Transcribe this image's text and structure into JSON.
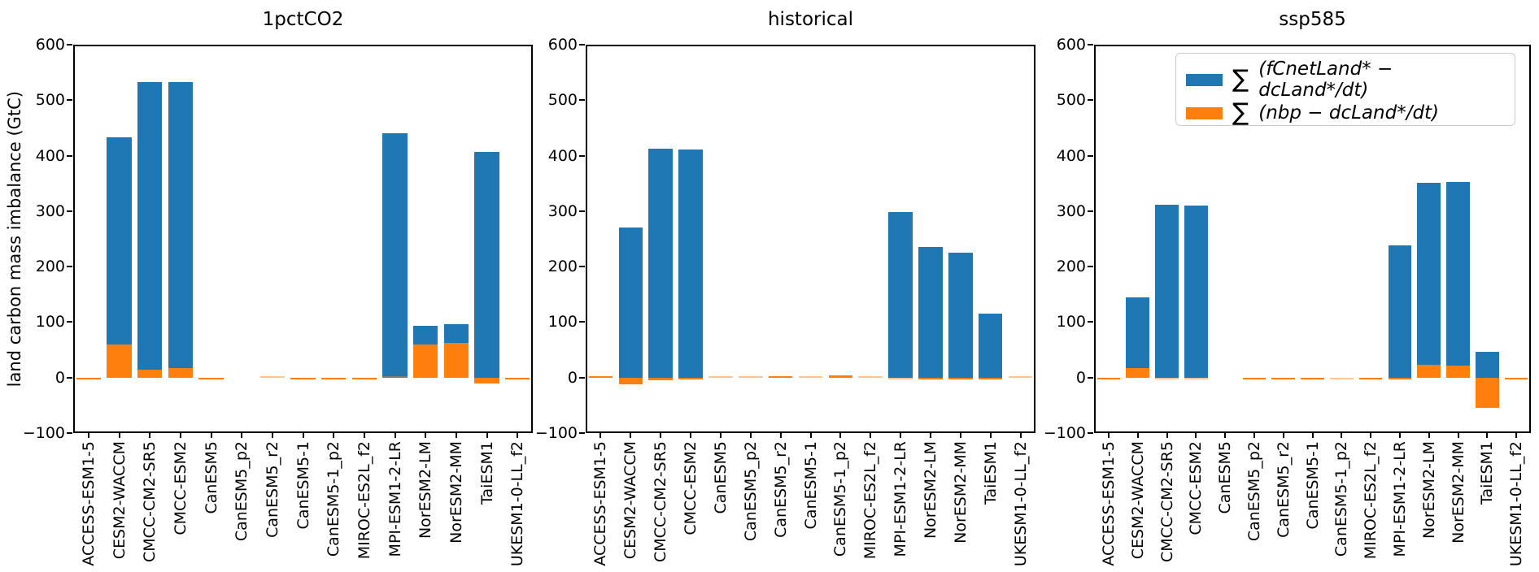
{
  "figure": {
    "y_axis_label": "land carbon mass imbalance (GtC)",
    "background": "#ffffff",
    "colors": {
      "blue": "#1f77b4",
      "orange": "#ff7f0e",
      "spine": "#000000"
    },
    "y_ticks": [
      "−100",
      "0",
      "100",
      "200",
      "300",
      "400",
      "500",
      "600"
    ]
  },
  "legend": {
    "location": "upper right of ssp585 panel",
    "entries": [
      {
        "swatch_color": "#1f77b4",
        "sum_symbol": "∑",
        "formula": "(fCnetLand* − dcLand*/dt)"
      },
      {
        "swatch_color": "#ff7f0e",
        "sum_symbol": "∑",
        "formula": "(nbp − dcLand*/dt)"
      }
    ]
  },
  "chart_data": [
    {
      "type": "bar",
      "title": "1pctCO2",
      "ylabel": "land carbon mass imbalance (GtC)",
      "ylim": [
        -100,
        600
      ],
      "grid": false,
      "bar_width": 0.8,
      "categories": [
        "ACCESS-ESM1-5",
        "CESM2-WACCM",
        "CMCC-CM2-SR5",
        "CMCC-ESM2",
        "CanESM5",
        "CanESM5_p2",
        "CanESM5_r2",
        "CanESM5-1",
        "CanESM5-1_p2",
        "MIROC-ES2L_f2",
        "MPI-ESM1-2-LR",
        "NorESM2-LM",
        "NorESM2-MM",
        "TaiESM1",
        "UKESM1-0-LL_f2"
      ],
      "series": [
        {
          "key": "blue",
          "name": "∑(fCnetLand* − dcLand*/dt)",
          "color": "#1f77b4",
          "values": [
            0,
            433,
            533,
            533,
            0,
            0,
            0,
            0,
            0,
            0,
            441,
            93,
            96,
            407,
            0
          ]
        },
        {
          "key": "orange",
          "name": "∑(nbp − dcLand*/dt)",
          "color": "#ff7f0e",
          "values": [
            -2,
            60,
            14,
            17,
            -2,
            0,
            1,
            -3,
            -3,
            -3,
            1,
            59,
            62,
            -11,
            -2
          ]
        }
      ]
    },
    {
      "type": "bar",
      "title": "historical",
      "ylabel": "land carbon mass imbalance (GtC)",
      "ylim": [
        -100,
        600
      ],
      "grid": false,
      "bar_width": 0.8,
      "categories": [
        "ACCESS-ESM1-5",
        "CESM2-WACCM",
        "CMCC-CM2-SR5",
        "CMCC-ESM2",
        "CanESM5",
        "CanESM5_p2",
        "CanESM5_r2",
        "CanESM5-1",
        "CanESM5-1_p2",
        "MIROC-ES2L_f2",
        "MPI-ESM1-2-LR",
        "NorESM2-LM",
        "NorESM2-MM",
        "TaiESM1",
        "UKESM1-0-LL_f2"
      ],
      "series": [
        {
          "key": "blue",
          "name": "∑(fCnetLand* − dcLand*/dt)",
          "color": "#1f77b4",
          "values": [
            0,
            271,
            413,
            411,
            0,
            0,
            0,
            0,
            0,
            0,
            298,
            235,
            225,
            115,
            0
          ]
        },
        {
          "key": "orange",
          "name": "∑(nbp − dcLand*/dt)",
          "color": "#ff7f0e",
          "values": [
            2,
            -12,
            -5,
            -3,
            1,
            1,
            3,
            1,
            4,
            1,
            -1,
            -2,
            -4,
            -3,
            1
          ]
        }
      ]
    },
    {
      "type": "bar",
      "title": "ssp585",
      "ylabel": "land carbon mass imbalance (GtC)",
      "ylim": [
        -100,
        600
      ],
      "grid": false,
      "bar_width": 0.8,
      "categories": [
        "ACCESS-ESM1-5",
        "CESM2-WACCM",
        "CMCC-CM2-SR5",
        "CMCC-ESM2",
        "CanESM5",
        "CanESM5_p2",
        "CanESM5_r2",
        "CanESM5-1",
        "CanESM5-1_p2",
        "MIROC-ES2L_f2",
        "MPI-ESM1-2-LR",
        "NorESM2-LM",
        "NorESM2-MM",
        "TaiESM1",
        "UKESM1-0-LL_f2"
      ],
      "series": [
        {
          "key": "blue",
          "name": "∑(fCnetLand* − dcLand*/dt)",
          "color": "#1f77b4",
          "values": [
            0,
            144,
            312,
            310,
            0,
            0,
            0,
            0,
            0,
            0,
            239,
            351,
            352,
            47,
            0
          ]
        },
        {
          "key": "orange",
          "name": "∑(nbp − dcLand*/dt)",
          "color": "#ff7f0e",
          "values": [
            -3,
            17,
            -1,
            -1,
            0,
            -2,
            -2,
            -2,
            -1,
            -2,
            -2,
            23,
            22,
            -54,
            -2
          ]
        }
      ]
    }
  ]
}
